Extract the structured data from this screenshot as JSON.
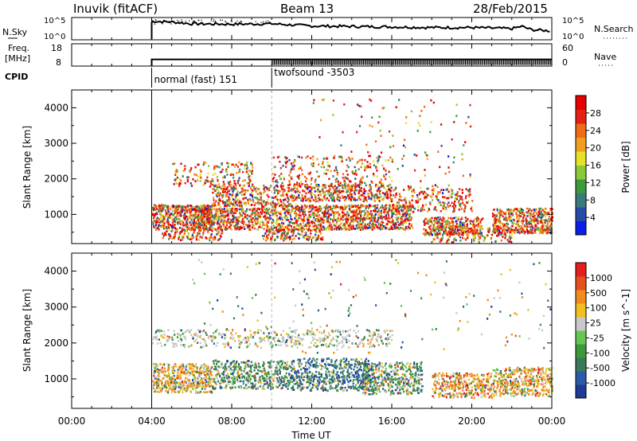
{
  "header": {
    "station": "Inuvik (fitACF)",
    "beam": "Beam 13",
    "date": "28/Feb/2015"
  },
  "param_labels": {
    "nsky": "N.Sky",
    "nsearch": "N.Search",
    "freq_line1": "Freq.",
    "freq_line2": "[MHz]",
    "nave": "Nave",
    "cpid": "CPID"
  },
  "chart_data": [
    {
      "type": "line",
      "panel": "noise",
      "left_ticks": [
        "10^5",
        "10^0"
      ],
      "right_ticks": [
        "10^5",
        "10^0"
      ],
      "series": [
        {
          "name": "N.Sky",
          "x_hours": [
            4.0,
            4.05,
            5,
            6,
            8,
            10,
            12,
            14,
            16,
            18,
            20,
            22,
            22.5,
            23,
            24
          ],
          "level": [
            0.78,
            0.83,
            0.8,
            0.72,
            0.7,
            0.72,
            0.62,
            0.6,
            0.58,
            0.55,
            0.55,
            0.5,
            0.6,
            0.45,
            0.4
          ]
        }
      ]
    },
    {
      "type": "line",
      "panel": "frequency",
      "left_ticks": [
        "18",
        "8"
      ],
      "right_ticks": [
        "60",
        "0"
      ],
      "series": [
        {
          "name": "Freq",
          "x_hours": [
            4,
            24
          ],
          "value_mhz": [
            11,
            11
          ]
        }
      ]
    },
    {
      "type": "table",
      "panel": "cpid",
      "segments": [
        {
          "start_hour": 4.0,
          "label": "normal (fast) 151"
        },
        {
          "start_hour": 10.0,
          "label": "twofsound -3503"
        }
      ]
    },
    {
      "type": "heatmap",
      "panel": "power",
      "ylabel": "Slant Range [km]",
      "y_ticks": [
        "1000",
        "2000",
        "3000",
        "4000"
      ],
      "ylim": [
        180,
        4500
      ],
      "colorbar": {
        "label": "Power [dB]",
        "ticks": [
          "4",
          "8",
          "12",
          "16",
          "20",
          "24",
          "28"
        ],
        "range": [
          0,
          30
        ]
      }
    },
    {
      "type": "heatmap",
      "panel": "velocity",
      "ylabel": "Slant Range [km]",
      "y_ticks": [
        "1000",
        "2000",
        "3000",
        "4000"
      ],
      "ylim": [
        180,
        4500
      ],
      "colorbar": {
        "label": "Velocity [m s^-1]",
        "ticks": [
          "1000",
          "500",
          "100",
          "25",
          "-25",
          "-100",
          "-500",
          "-1000"
        ]
      },
      "xlabel": "Time UT",
      "x_ticks": [
        "00:00",
        "04:00",
        "08:00",
        "12:00",
        "16:00",
        "20:00",
        "00:00"
      ],
      "xlim_hours": [
        0,
        24
      ]
    }
  ],
  "colors": {
    "power_scale": [
      "#0a1ee6",
      "#2a4aa8",
      "#3a7a7a",
      "#3c9a3c",
      "#8ac83a",
      "#e6e22a",
      "#f0a020",
      "#f06a18",
      "#e82014",
      "#e60000"
    ],
    "velocity_scale": [
      "#1e3c96",
      "#2d5aa8",
      "#3a7a5a",
      "#3c9a3c",
      "#64c850",
      "#c8c8c8",
      "#f0c020",
      "#f08c1e",
      "#e6501e",
      "#e61e1e"
    ]
  }
}
